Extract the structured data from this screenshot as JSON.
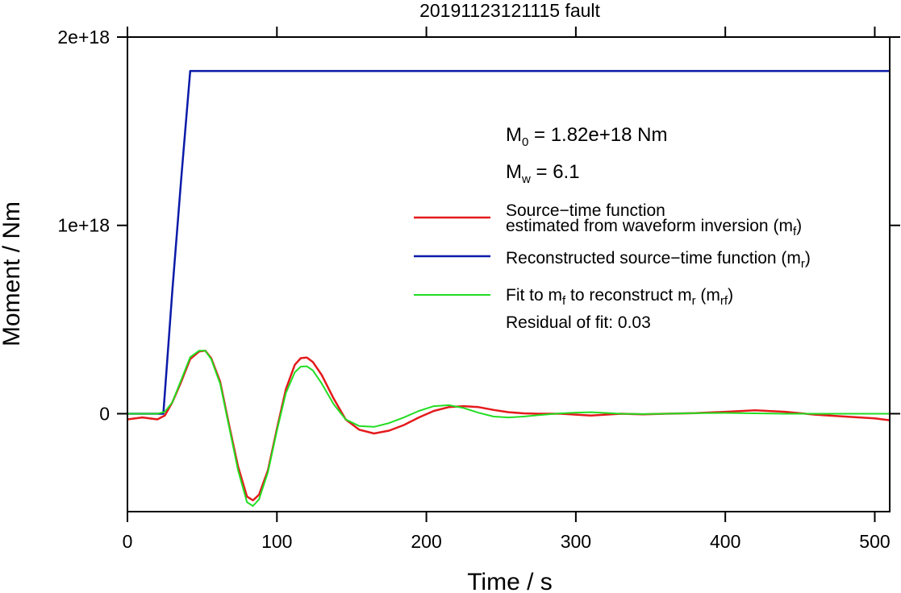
{
  "chart_data": {
    "type": "line",
    "title": "20191123121115 fault",
    "xlabel": "Time / s",
    "ylabel": "Moment / Nm",
    "xlim": [
      0,
      510
    ],
    "ylim": [
      -5.2e+17,
      2e+18
    ],
    "x_ticks": [
      0,
      100,
      200,
      300,
      400,
      500
    ],
    "x_tick_labels": [
      "0",
      "100",
      "200",
      "300",
      "400",
      "500"
    ],
    "y_ticks": [
      0,
      1e+18,
      2e+18
    ],
    "y_tick_labels": [
      "0",
      "1e+18",
      "2e+18"
    ],
    "grid": false,
    "legend_position": "right",
    "annotations": {
      "m0": {
        "base": "M",
        "sub": "0",
        "text": " = 1.82e+18 Nm"
      },
      "mw": {
        "base": "M",
        "sub": "w",
        "text": " = 6.1"
      },
      "residual": "Residual of fit: 0.03"
    },
    "legend": [
      {
        "id": "mf",
        "color": "#e41a1c",
        "line1": "Source−time function",
        "line2_text": "estimated from waveform inversion (m",
        "line2_sub": "f",
        "line2_end": ")"
      },
      {
        "id": "mr",
        "color": "#0a1aa8",
        "text": "Reconstructed source−time function (m",
        "sub": "r",
        "end": ")"
      },
      {
        "id": "mrf",
        "color": "#22dd22",
        "t1": "Fit to m",
        "s1": "f",
        "t2": " to reconstruct m",
        "s2": "r",
        "t3": " (m",
        "s3": "rf",
        "t4": ")"
      }
    ],
    "series": [
      {
        "id": "mf",
        "color": "#e41a1c",
        "x": [
          0,
          10,
          20,
          25,
          30,
          36,
          42,
          48,
          52,
          56,
          62,
          68,
          74,
          80,
          84,
          88,
          94,
          100,
          106,
          112,
          116,
          120,
          124,
          130,
          138,
          146,
          155,
          165,
          175,
          185,
          195,
          205,
          215,
          225,
          235,
          245,
          255,
          265,
          275,
          290,
          300,
          310,
          320,
          330,
          345,
          360,
          380,
          400,
          420,
          440,
          460,
          480,
          500,
          510
        ],
        "y": [
          -3e+16,
          -2e+16,
          -3e+16,
          -1e+16,
          6e+16,
          1.7e+17,
          2.9e+17,
          3.3e+17,
          3.35e+17,
          2.95e+17,
          1.7e+17,
          -6e+16,
          -2.8e+17,
          -4.4e+17,
          -4.6e+17,
          -4.3e+17,
          -3e+17,
          -8e+16,
          1.3e+17,
          2.6e+17,
          2.95e+17,
          2.98e+17,
          2.75e+17,
          2.05e+17,
          8e+16,
          -3e+16,
          -8.5e+16,
          -1.05e+17,
          -9e+16,
          -6e+16,
          -2e+16,
          1.5e+16,
          3.5e+16,
          4e+16,
          3.5e+16,
          2e+16,
          8000000000000000.0,
          2000000000000000.0,
          0,
          0,
          -5000000000000000.0,
          -1e+16,
          -5000000000000000.0,
          0,
          -3000000000000000.0,
          0,
          3000000000000000.0,
          1e+16,
          1.8e+16,
          1e+16,
          -5000000000000000.0,
          -1.5e+16,
          -2.5e+16,
          -3.5e+16
        ]
      },
      {
        "id": "mr",
        "color": "#0a1aa8",
        "x": [
          0,
          24,
          30,
          36,
          42,
          510
        ],
        "y": [
          0,
          0,
          6.5e+17,
          1.25e+18,
          1.82e+18,
          1.82e+18
        ]
      },
      {
        "id": "mrf",
        "color": "#22dd22",
        "x": [
          0,
          10,
          20,
          25,
          30,
          36,
          42,
          48,
          52,
          56,
          62,
          68,
          74,
          80,
          84,
          88,
          94,
          100,
          106,
          112,
          116,
          120,
          124,
          130,
          138,
          146,
          155,
          165,
          175,
          185,
          195,
          205,
          215,
          225,
          235,
          245,
          255,
          265,
          275,
          290,
          300,
          310,
          320,
          330,
          345,
          360,
          380,
          400,
          420,
          440,
          460,
          480,
          500,
          510
        ],
        "y": [
          0,
          0,
          0,
          1e+16,
          6e+16,
          1.8e+17,
          3e+17,
          3.35e+17,
          3.35e+17,
          2.9e+17,
          1.6e+17,
          -7e+16,
          -3e+17,
          -4.7e+17,
          -4.9e+17,
          -4.55e+17,
          -3.1e+17,
          -9e+16,
          1.1e+17,
          2.2e+17,
          2.5e+17,
          2.52e+17,
          2.3e+17,
          1.6e+17,
          5e+16,
          -3e+16,
          -6.5e+16,
          -7e+16,
          -5e+16,
          -2e+16,
          1.5e+16,
          4e+16,
          4.5e+16,
          3e+16,
          5000000000000000.0,
          -1.5e+16,
          -2e+16,
          -1.5e+16,
          -8000000000000000.0,
          2000000000000000.0,
          6000000000000000.0,
          8000000000000000.0,
          4000000000000000.0,
          0,
          -2000000000000000.0,
          0,
          3000000000000000.0,
          4000000000000000.0,
          2000000000000000.0,
          0,
          0,
          0,
          0,
          0
        ]
      }
    ]
  }
}
